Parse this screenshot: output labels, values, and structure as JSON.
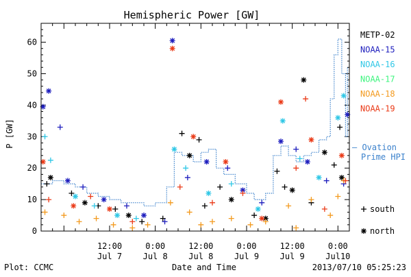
{
  "chart_data": {
    "type": "scatter",
    "title": "Hemispheric Power [GW]",
    "ylabel": "P [GW]",
    "xlabel": "Date and Time",
    "xlim": [
      "2013-07-06 18:00",
      "2013-07-10 03:00"
    ],
    "ylim": [
      0,
      66
    ],
    "yticks": [
      0,
      10,
      20,
      30,
      40,
      50,
      60
    ],
    "xticks": [
      {
        "time": "2013-07-07 12:00",
        "line1": "12:00",
        "line2": "Jul 7"
      },
      {
        "time": "2013-07-08 00:00",
        "line1": "0:00",
        "line2": "Jul 8"
      },
      {
        "time": "2013-07-08 12:00",
        "line1": "12:00",
        "line2": "Jul 8"
      },
      {
        "time": "2013-07-09 00:00",
        "line1": "0:00",
        "line2": "Jul 9"
      },
      {
        "time": "2013-07-09 12:00",
        "line1": "12:00",
        "line2": "Jul 9"
      },
      {
        "time": "2013-07-10 00:00",
        "line1": "0:00",
        "line2": "Jul10"
      }
    ],
    "series": [
      {
        "name": "METP-02",
        "color": "#000000",
        "points": [
          [
            "2013-07-06 19:30",
            15,
            "south"
          ],
          [
            "2013-07-06 20:30",
            17,
            "north"
          ],
          [
            "2013-07-07 02:00",
            12,
            "south"
          ],
          [
            "2013-07-07 05:30",
            9,
            "north"
          ],
          [
            "2013-07-07 09:00",
            8,
            "south"
          ],
          [
            "2013-07-07 13:30",
            7,
            "south"
          ],
          [
            "2013-07-07 17:00",
            5,
            "north"
          ],
          [
            "2013-07-07 20:30",
            3,
            "south"
          ],
          [
            "2013-07-08 02:00",
            4,
            "south"
          ],
          [
            "2013-07-08 07:00",
            31,
            "south"
          ],
          [
            "2013-07-08 09:00",
            24,
            "north"
          ],
          [
            "2013-07-08 11:30",
            29,
            "south"
          ],
          [
            "2013-07-08 13:00",
            8,
            "south"
          ],
          [
            "2013-07-08 17:00",
            14,
            "south"
          ],
          [
            "2013-07-08 20:00",
            10,
            "north"
          ],
          [
            "2013-07-09 02:00",
            5,
            "south"
          ],
          [
            "2013-07-09 05:00",
            4,
            "north"
          ],
          [
            "2013-07-09 08:00",
            19,
            "south"
          ],
          [
            "2013-07-09 10:00",
            14,
            "south"
          ],
          [
            "2013-07-09 12:00",
            13,
            "north"
          ],
          [
            "2013-07-09 15:00",
            48,
            "north"
          ],
          [
            "2013-07-09 17:00",
            9,
            "south"
          ],
          [
            "2013-07-09 20:30",
            25,
            "north"
          ],
          [
            "2013-07-09 23:00",
            21,
            "south"
          ],
          [
            "2013-07-10 00:30",
            33,
            "south"
          ],
          [
            "2013-07-10 01:00",
            17,
            "north"
          ]
        ]
      },
      {
        "name": "NOAA-15",
        "color": "#1c1cbd",
        "points": [
          [
            "2013-07-06 18:30",
            39.5,
            "north"
          ],
          [
            "2013-07-06 20:00",
            44.5,
            "north"
          ],
          [
            "2013-07-06 23:00",
            33,
            "south"
          ],
          [
            "2013-07-07 01:00",
            16,
            "north"
          ],
          [
            "2013-07-07 05:00",
            14,
            "south"
          ],
          [
            "2013-07-07 10:30",
            10,
            "north"
          ],
          [
            "2013-07-07 16:30",
            8,
            "south"
          ],
          [
            "2013-07-07 21:00",
            5,
            "north"
          ],
          [
            "2013-07-08 02:30",
            3,
            "south"
          ],
          [
            "2013-07-08 04:30",
            60.5,
            "north"
          ],
          [
            "2013-07-08 08:30",
            17,
            "south"
          ],
          [
            "2013-07-08 13:30",
            22,
            "north"
          ],
          [
            "2013-07-08 19:00",
            20,
            "south"
          ],
          [
            "2013-07-08 23:00",
            13,
            "north"
          ],
          [
            "2013-07-09 04:00",
            9,
            "south"
          ],
          [
            "2013-07-09 09:00",
            28.5,
            "north"
          ],
          [
            "2013-07-09 13:00",
            26,
            "south"
          ],
          [
            "2013-07-09 16:00",
            22,
            "north"
          ],
          [
            "2013-07-09 21:00",
            16,
            "south"
          ],
          [
            "2013-07-10 01:30",
            15,
            "south"
          ],
          [
            "2013-07-10 02:30",
            37,
            "north"
          ]
        ]
      },
      {
        "name": "NOAA-16",
        "color": "#2fc7e6",
        "points": [
          [
            "2013-07-06 19:00",
            30,
            "south"
          ],
          [
            "2013-07-06 20:30",
            22.5,
            "south"
          ],
          [
            "2013-07-07 03:00",
            11,
            "north"
          ],
          [
            "2013-07-07 08:00",
            8,
            "south"
          ],
          [
            "2013-07-07 14:00",
            5,
            "north"
          ],
          [
            "2013-07-07 19:00",
            4,
            "south"
          ],
          [
            "2013-07-08 05:00",
            26,
            "north"
          ],
          [
            "2013-07-08 08:00",
            20,
            "south"
          ],
          [
            "2013-07-08 14:00",
            12,
            "north"
          ],
          [
            "2013-07-08 20:00",
            15,
            "south"
          ],
          [
            "2013-07-09 03:00",
            7,
            "north"
          ],
          [
            "2013-07-09 09:30",
            35,
            "north"
          ],
          [
            "2013-07-09 14:00",
            23,
            "south"
          ],
          [
            "2013-07-09 19:00",
            17,
            "north"
          ],
          [
            "2013-07-10 00:00",
            36,
            "north"
          ],
          [
            "2013-07-10 01:30",
            43,
            "north"
          ]
        ]
      },
      {
        "name": "NOAA-17",
        "color": "#3df57e",
        "points": []
      },
      {
        "name": "NOAA-18",
        "color": "#f39a1e",
        "points": [
          [
            "2013-07-06 19:00",
            6,
            "south"
          ],
          [
            "2013-07-07 00:00",
            5,
            "south"
          ],
          [
            "2013-07-07 04:00",
            3,
            "south"
          ],
          [
            "2013-07-07 08:30",
            4,
            "south"
          ],
          [
            "2013-07-07 13:00",
            2,
            "south"
          ],
          [
            "2013-07-07 18:00",
            1,
            "south"
          ],
          [
            "2013-07-07 22:00",
            2,
            "south"
          ],
          [
            "2013-07-08 04:00",
            9,
            "south"
          ],
          [
            "2013-07-08 09:00",
            6,
            "south"
          ],
          [
            "2013-07-08 12:00",
            2,
            "south"
          ],
          [
            "2013-07-08 15:00",
            3,
            "south"
          ],
          [
            "2013-07-08 20:00",
            4,
            "south"
          ],
          [
            "2013-07-09 01:00",
            2,
            "south"
          ],
          [
            "2013-07-09 05:00",
            3,
            "south"
          ],
          [
            "2013-07-09 11:00",
            8,
            "south"
          ],
          [
            "2013-07-09 13:00",
            1,
            "south"
          ],
          [
            "2013-07-09 17:00",
            10,
            "south"
          ],
          [
            "2013-07-09 22:00",
            5,
            "south"
          ],
          [
            "2013-07-10 00:00",
            11,
            "south"
          ],
          [
            "2013-07-10 01:30",
            16,
            "south"
          ]
        ]
      },
      {
        "name": "NOAA-19",
        "color": "#ea3a17",
        "points": [
          [
            "2013-07-06 18:30",
            22,
            "north"
          ],
          [
            "2013-07-06 20:00",
            10,
            "south"
          ],
          [
            "2013-07-07 02:30",
            8,
            "north"
          ],
          [
            "2013-07-07 07:00",
            11,
            "south"
          ],
          [
            "2013-07-07 12:00",
            7,
            "north"
          ],
          [
            "2013-07-07 18:00",
            3,
            "south"
          ],
          [
            "2013-07-08 04:30",
            58,
            "north"
          ],
          [
            "2013-07-08 06:30",
            14,
            "south"
          ],
          [
            "2013-07-08 10:00",
            30,
            "north"
          ],
          [
            "2013-07-08 15:00",
            9,
            "south"
          ],
          [
            "2013-07-08 18:30",
            22,
            "north"
          ],
          [
            "2013-07-08 23:00",
            12,
            "south"
          ],
          [
            "2013-07-09 04:00",
            4,
            "north"
          ],
          [
            "2013-07-09 09:00",
            41,
            "north"
          ],
          [
            "2013-07-09 13:00",
            20,
            "south"
          ],
          [
            "2013-07-09 15:30",
            42,
            "south"
          ],
          [
            "2013-07-09 17:00",
            29,
            "north"
          ],
          [
            "2013-07-09 20:30",
            7,
            "south"
          ],
          [
            "2013-07-10 01:00",
            24,
            "north"
          ],
          [
            "2013-07-10 02:00",
            16,
            "south"
          ]
        ]
      }
    ],
    "ovation": {
      "name": "Ovation Prime HPI",
      "legend_line1": "— Ovation",
      "legend_line2": "Prime HPI",
      "color": "#3c82cc",
      "points": [
        [
          "2013-07-06 18:00",
          15
        ],
        [
          "2013-07-06 21:00",
          16
        ],
        [
          "2013-07-07 00:00",
          15
        ],
        [
          "2013-07-07 03:00",
          14
        ],
        [
          "2013-07-07 06:00",
          12
        ],
        [
          "2013-07-07 09:00",
          11
        ],
        [
          "2013-07-07 12:00",
          10
        ],
        [
          "2013-07-07 15:00",
          9
        ],
        [
          "2013-07-07 18:00",
          9
        ],
        [
          "2013-07-07 21:00",
          8
        ],
        [
          "2013-07-08 00:00",
          9
        ],
        [
          "2013-07-08 03:00",
          14
        ],
        [
          "2013-07-08 05:00",
          25
        ],
        [
          "2013-07-08 07:00",
          24
        ],
        [
          "2013-07-08 10:00",
          22
        ],
        [
          "2013-07-08 12:00",
          25
        ],
        [
          "2013-07-08 14:00",
          26
        ],
        [
          "2013-07-08 16:00",
          20
        ],
        [
          "2013-07-08 18:00",
          18
        ],
        [
          "2013-07-08 21:00",
          15
        ],
        [
          "2013-07-09 00:00",
          12
        ],
        [
          "2013-07-09 02:00",
          10
        ],
        [
          "2013-07-09 05:00",
          12
        ],
        [
          "2013-07-09 07:00",
          24
        ],
        [
          "2013-07-09 09:00",
          27
        ],
        [
          "2013-07-09 11:00",
          24
        ],
        [
          "2013-07-09 13:00",
          22
        ],
        [
          "2013-07-09 15:00",
          24
        ],
        [
          "2013-07-09 17:00",
          25
        ],
        [
          "2013-07-09 19:00",
          29
        ],
        [
          "2013-07-09 21:00",
          30
        ],
        [
          "2013-07-09 22:00",
          42
        ],
        [
          "2013-07-09 23:00",
          56
        ],
        [
          "2013-07-10 00:00",
          61
        ],
        [
          "2013-07-10 01:00",
          50
        ],
        [
          "2013-07-10 02:00",
          30
        ],
        [
          "2013-07-10 02:30",
          52
        ]
      ]
    },
    "symbol_legend": [
      {
        "symbol": "+",
        "label": "south"
      },
      {
        "symbol": "*",
        "label": "north"
      }
    ]
  },
  "footer": {
    "plot_label": "Plot: CCMC",
    "timestamp": "2013/07/10 05:25:23"
  }
}
